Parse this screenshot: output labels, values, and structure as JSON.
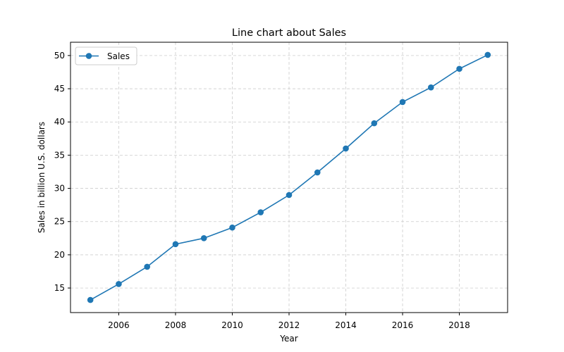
{
  "chart_data": {
    "type": "line",
    "title": "Line chart about Sales",
    "xlabel": "Year",
    "ylabel": "Sales in billion U.S. dollars",
    "x": [
      2005,
      2006,
      2007,
      2008,
      2009,
      2010,
      2011,
      2012,
      2013,
      2014,
      2015,
      2016,
      2017,
      2018,
      2019
    ],
    "series": [
      {
        "name": "Sales",
        "color": "#1f77b4",
        "marker": "circle",
        "values": [
          13.2,
          15.6,
          18.2,
          21.6,
          22.5,
          24.1,
          26.4,
          29.0,
          32.4,
          36.0,
          39.8,
          43.0,
          45.2,
          48.0,
          50.1
        ]
      }
    ],
    "xlim": [
      2004.3,
      2019.7
    ],
    "ylim": [
      11.3,
      52.0
    ],
    "xticks": [
      2006,
      2008,
      2010,
      2012,
      2014,
      2016,
      2018
    ],
    "yticks": [
      15,
      20,
      25,
      30,
      35,
      40,
      45,
      50
    ],
    "grid": true,
    "legend_position": "top-left"
  }
}
